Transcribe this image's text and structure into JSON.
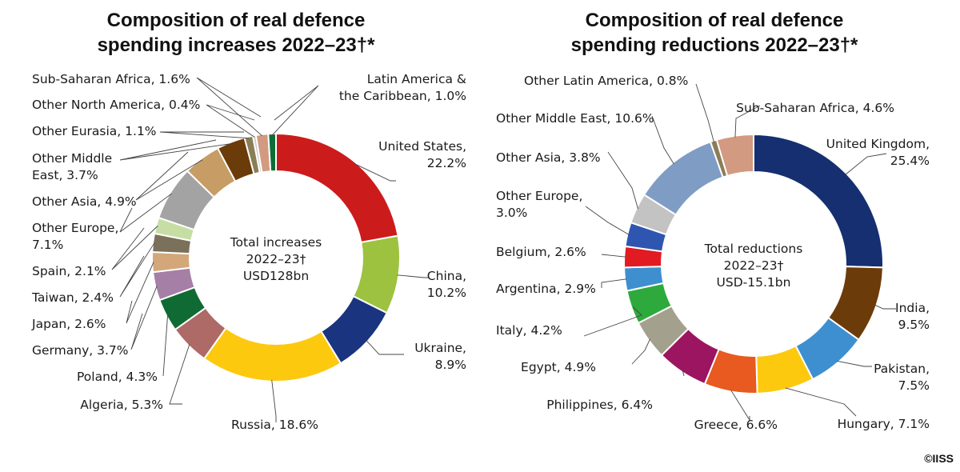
{
  "credit": "©IISS",
  "chart_data": [
    {
      "type": "pie",
      "style": "donut",
      "title": [
        "Composition of real defence",
        "spending increases 2022–23†*"
      ],
      "center_text": [
        "Total increases",
        "2022–23†",
        "USD128bn"
      ],
      "unit": "%",
      "slices": [
        {
          "name": "United States",
          "value": 22.2,
          "color": "#cc1b1b",
          "label": [
            "United States,",
            "22.2%"
          ]
        },
        {
          "name": "China",
          "value": 10.2,
          "color": "#9dc23f",
          "label": [
            "China,",
            "10.2%"
          ]
        },
        {
          "name": "Ukraine",
          "value": 8.9,
          "color": "#1a3480",
          "label": [
            "Ukraine,",
            "8.9%"
          ]
        },
        {
          "name": "Russia",
          "value": 18.6,
          "color": "#fdc90f",
          "label": [
            "Russia, 18.6%"
          ]
        },
        {
          "name": "Algeria",
          "value": 5.3,
          "color": "#ae6a66",
          "label": [
            "Algeria, 5.3%"
          ]
        },
        {
          "name": "Poland",
          "value": 4.3,
          "color": "#0f6b33",
          "label": [
            "Poland, 4.3%"
          ]
        },
        {
          "name": "Germany",
          "value": 3.7,
          "color": "#a57fa6",
          "label": [
            "Germany, 3.7%"
          ]
        },
        {
          "name": "Japan",
          "value": 2.6,
          "color": "#d4a77a",
          "label": [
            "Japan, 2.6%"
          ]
        },
        {
          "name": "Taiwan",
          "value": 2.4,
          "color": "#7b7059",
          "label": [
            "Taiwan, 2.4%"
          ]
        },
        {
          "name": "Spain",
          "value": 2.1,
          "color": "#c6dea3",
          "label": [
            "Spain, 2.1%"
          ]
        },
        {
          "name": "Other Europe",
          "value": 7.1,
          "color": "#a3a3a3",
          "label": [
            "Other Europe,",
            "7.1%"
          ]
        },
        {
          "name": "Other Asia",
          "value": 4.9,
          "color": "#c79c65",
          "label": [
            "Other Asia, 4.9%"
          ]
        },
        {
          "name": "Other Middle East",
          "value": 3.7,
          "color": "#6b3c0a",
          "label": [
            "Other Middle",
            "East, 3.7%"
          ]
        },
        {
          "name": "Other Eurasia",
          "value": 1.1,
          "color": "#8a7e57",
          "label": [
            "Other Eurasia, 1.1%"
          ]
        },
        {
          "name": "Other North America",
          "value": 0.4,
          "color": "#c8c8c8",
          "label": [
            "Other North America, 0.4%"
          ]
        },
        {
          "name": "Sub-Saharan Africa",
          "value": 1.6,
          "color": "#d29a80",
          "label": [
            "Sub-Saharan Africa, 1.6%"
          ]
        },
        {
          "name": "Latin America & the Caribbean",
          "value": 1.0,
          "color": "#0b6e35",
          "label": [
            "Latin America &",
            "the Caribbean, 1.0%"
          ]
        }
      ]
    },
    {
      "type": "pie",
      "style": "donut",
      "title": [
        "Composition of real defence",
        "spending reductions 2022–23†*"
      ],
      "center_text": [
        "Total reductions",
        "2022–23†",
        "USD-15.1bn"
      ],
      "unit": "%",
      "slices": [
        {
          "name": "United Kingdom",
          "value": 25.4,
          "color": "#152f70",
          "label": [
            "United Kingdom,",
            "25.4%"
          ]
        },
        {
          "name": "India",
          "value": 9.5,
          "color": "#6b3c0a",
          "label": [
            "India,",
            "9.5%"
          ]
        },
        {
          "name": "Pakistan",
          "value": 7.5,
          "color": "#3e8fd0",
          "label": [
            "Pakistan,",
            "7.5%"
          ]
        },
        {
          "name": "Hungary",
          "value": 7.1,
          "color": "#fdc90f",
          "label": [
            "Hungary, 7.1%"
          ]
        },
        {
          "name": "Greece",
          "value": 6.6,
          "color": "#e85a1f",
          "label": [
            "Greece, 6.6%"
          ]
        },
        {
          "name": "Philippines",
          "value": 6.4,
          "color": "#9c1560",
          "label": [
            "Philippines, 6.4%"
          ]
        },
        {
          "name": "Egypt",
          "value": 4.9,
          "color": "#a3a08e",
          "label": [
            "Egypt, 4.9%"
          ]
        },
        {
          "name": "Italy",
          "value": 4.2,
          "color": "#2eaa3c",
          "label": [
            "Italy, 4.2%"
          ]
        },
        {
          "name": "Argentina",
          "value": 2.9,
          "color": "#3e8fd0",
          "label": [
            "Argentina, 2.9%"
          ]
        },
        {
          "name": "Belgium",
          "value": 2.6,
          "color": "#e21a22",
          "label": [
            "Belgium, 2.6%"
          ]
        },
        {
          "name": "Other Europe",
          "value": 3.0,
          "color": "#2e55b0",
          "label": [
            "Other Europe,",
            "3.0%"
          ]
        },
        {
          "name": "Other Asia",
          "value": 3.8,
          "color": "#c3c3c3",
          "label": [
            "Other Asia, 3.8%"
          ]
        },
        {
          "name": "Other Middle East",
          "value": 10.6,
          "color": "#7f9cc4",
          "label": [
            "Other Middle East, 10.6%"
          ]
        },
        {
          "name": "Other Latin America",
          "value": 0.8,
          "color": "#8a7e57",
          "label": [
            "Other Latin America, 0.8%"
          ]
        },
        {
          "name": "Sub-Saharan Africa",
          "value": 4.6,
          "color": "#d29a80",
          "label": [
            "Sub-Saharan Africa, 4.6%"
          ]
        }
      ]
    }
  ]
}
